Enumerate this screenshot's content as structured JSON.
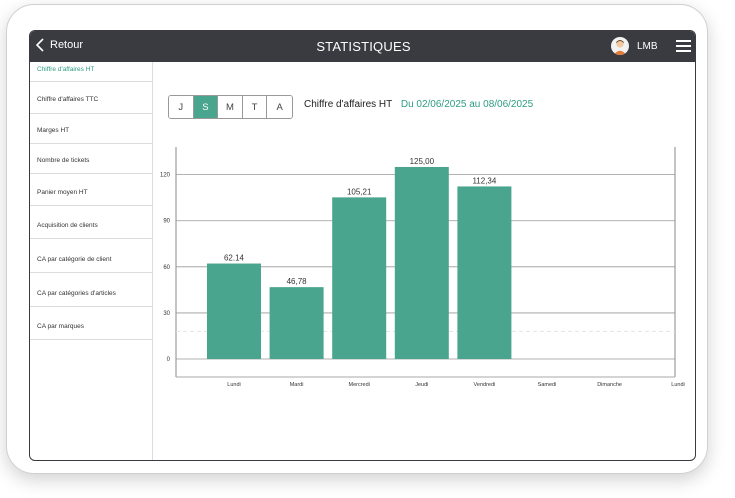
{
  "header": {
    "back_label": "Retour",
    "title": "STATISTIQUES",
    "user_name": "LMB"
  },
  "sidebar": {
    "items": [
      {
        "label": "Chiffre d'affaires HT",
        "active": true
      },
      {
        "label": "Chiffre d'affaires TTC",
        "active": false
      },
      {
        "label": "Marges HT",
        "active": false
      },
      {
        "label": "Nombre de tickets",
        "active": false
      },
      {
        "label": "Panier moyen HT",
        "active": false
      },
      {
        "label": "Acquisition de clients",
        "active": false
      },
      {
        "label": "CA par catégorie de client",
        "active": false
      },
      {
        "label": "CA par catégories d'articles",
        "active": false
      },
      {
        "label": "CA par marques",
        "active": false
      }
    ]
  },
  "period_tabs": {
    "items": [
      {
        "label": "J",
        "active": false
      },
      {
        "label": "S",
        "active": true
      },
      {
        "label": "M",
        "active": false
      },
      {
        "label": "T",
        "active": false
      },
      {
        "label": "A",
        "active": false
      }
    ]
  },
  "chart_header": {
    "metric": "Chiffre d'affaires HT",
    "range": "Du 02/06/2025 au 08/06/2025"
  },
  "colors": {
    "accent": "#2e9c82",
    "bar": "#4aa58e",
    "topbar": "#3a3b40"
  },
  "chart_data": {
    "type": "bar",
    "categories": [
      "Lundi",
      "Mardi",
      "Mercredi",
      "Jeudi",
      "Vendredi",
      "Samedi",
      "Dimanche",
      "Lundi"
    ],
    "values": [
      62.14,
      46.78,
      105.21,
      125.0,
      112.34,
      null,
      null,
      null
    ],
    "value_labels": [
      "62.14",
      "46,78",
      "105,21",
      "125,00",
      "112,34",
      "",
      "",
      ""
    ],
    "yticks": [
      0,
      30,
      60,
      90,
      120
    ],
    "ylim": [
      0,
      138
    ],
    "grid": true,
    "average_line": 18
  }
}
